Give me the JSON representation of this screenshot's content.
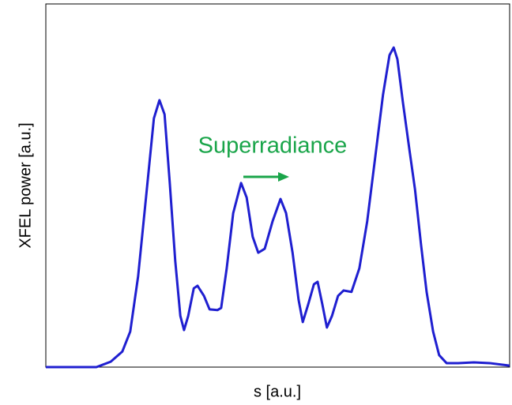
{
  "chart_data": {
    "type": "line",
    "xlabel": "s [a.u.]",
    "ylabel": "XFEL power [a.u.]",
    "annotation": "Superradiance",
    "xlim": [
      0,
      100
    ],
    "ylim": [
      0,
      100
    ],
    "x": [
      0,
      10.9,
      14.0,
      16.5,
      18.2,
      19.9,
      21.6,
      23.3,
      24.5,
      25.6,
      26.7,
      27.9,
      29.0,
      29.8,
      30.7,
      31.9,
      32.7,
      34.1,
      35.3,
      37.0,
      37.8,
      39.0,
      40.4,
      42.1,
      43.3,
      44.6,
      45.8,
      47.2,
      48.9,
      50.6,
      51.8,
      53.2,
      54.5,
      55.4,
      56.6,
      57.8,
      58.6,
      59.6,
      60.6,
      61.7,
      63.0,
      64.2,
      65.9,
      67.6,
      69.3,
      71.0,
      72.7,
      74.1,
      75.0,
      75.8,
      77.0,
      78.4,
      79.6,
      80.9,
      82.1,
      83.5,
      84.8,
      86.4,
      88.9,
      92.3,
      95.7,
      100
    ],
    "series": [
      {
        "color": "#1f1fd0",
        "values": [
          0,
          0,
          1.5,
          4.3,
          9.8,
          25.0,
          46.7,
          68.5,
          73.5,
          69.6,
          51.1,
          29.3,
          14.1,
          10.2,
          14.1,
          21.7,
          22.4,
          19.6,
          15.9,
          15.7,
          16.3,
          27.2,
          42.4,
          50.7,
          46.7,
          35.9,
          31.5,
          32.6,
          40.2,
          46.3,
          42.4,
          31.5,
          18.5,
          12.4,
          17.4,
          22.8,
          23.5,
          17.4,
          10.9,
          14.1,
          19.6,
          21.1,
          20.7,
          27.2,
          40.2,
          57.6,
          75.0,
          85.9,
          88.0,
          84.8,
          72.8,
          59.8,
          48.9,
          33.7,
          20.7,
          9.8,
          3.3,
          1.1,
          1.1,
          1.3,
          1.1,
          0.4
        ]
      }
    ]
  }
}
